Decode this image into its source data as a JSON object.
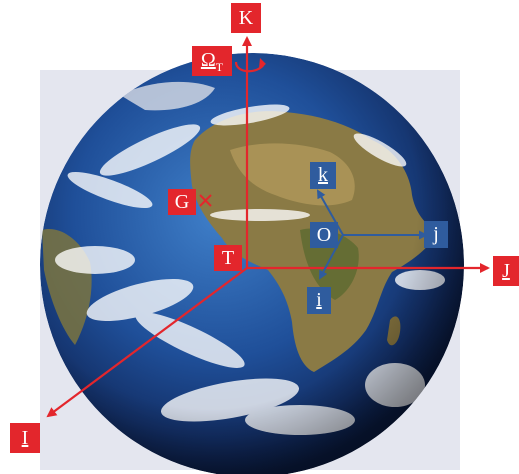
{
  "labels": {
    "K": "K",
    "omega": "Ω",
    "omega_sub": "T",
    "I": "I",
    "J": "J",
    "T": "T",
    "G": "G",
    "O": "O",
    "i": "i",
    "j": "j",
    "k": "k"
  },
  "colors": {
    "earth_frame": "#e3262c",
    "body_frame": "#2f5c9e",
    "background": "#ffffff"
  }
}
